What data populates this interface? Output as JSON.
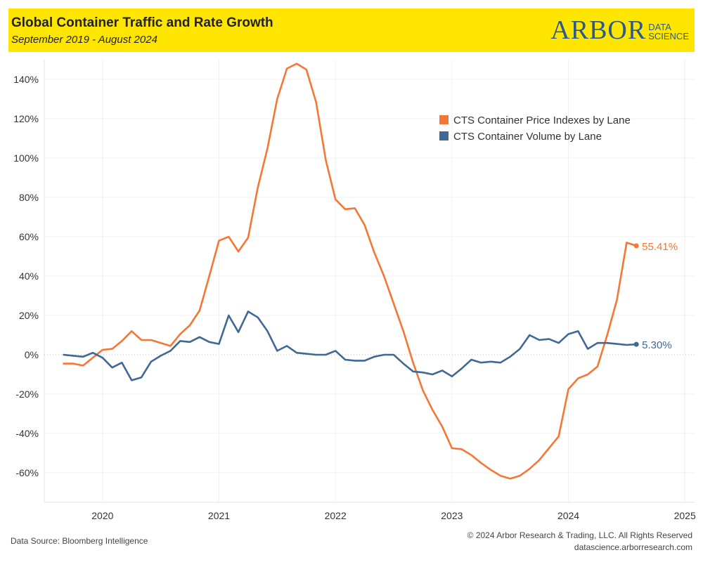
{
  "header": {
    "title": "Global Container Traffic and Rate Growth",
    "subtitle": "September 2019 - August 2024",
    "logo_main": "ARBOR",
    "logo_sub_1": "DATA",
    "logo_sub_2": "SCIENCE"
  },
  "footer": {
    "source": "Data Source: Bloomberg Intelligence",
    "copyright": "© 2024 Arbor Research & Trading, LLC. All Rights Reserved",
    "website": "datascience.arborresearch.com"
  },
  "colors": {
    "header_bg": "#ffe600",
    "price_series": "#f47735",
    "volume_series": "#3f6896"
  },
  "chart_data": {
    "type": "line",
    "x_unit": "month",
    "xlim": [
      "2019-07",
      "2025-02"
    ],
    "ylim": [
      -75,
      150
    ],
    "y_ticks": [
      -60,
      -40,
      -20,
      0,
      20,
      40,
      60,
      80,
      100,
      120,
      140
    ],
    "y_tick_labels": [
      "-60%",
      "-40%",
      "-20%",
      "0%",
      "20%",
      "40%",
      "60%",
      "80%",
      "100%",
      "120%",
      "140%"
    ],
    "x_ticks": [
      "2020-01",
      "2021-01",
      "2022-01",
      "2023-01",
      "2024-01",
      "2025-01"
    ],
    "x_tick_labels": [
      "2020",
      "2021",
      "2022",
      "2023",
      "2024",
      "2025"
    ],
    "gridlines": true,
    "zero_line": "dotted",
    "legend_position": "top-right",
    "x": [
      "2019-09",
      "2019-10",
      "2019-11",
      "2019-12",
      "2020-01",
      "2020-02",
      "2020-03",
      "2020-04",
      "2020-05",
      "2020-06",
      "2020-07",
      "2020-08",
      "2020-09",
      "2020-10",
      "2020-11",
      "2020-12",
      "2021-01",
      "2021-02",
      "2021-03",
      "2021-04",
      "2021-05",
      "2021-06",
      "2021-07",
      "2021-08",
      "2021-09",
      "2021-10",
      "2021-11",
      "2021-12",
      "2022-01",
      "2022-02",
      "2022-03",
      "2022-04",
      "2022-05",
      "2022-06",
      "2022-07",
      "2022-08",
      "2022-09",
      "2022-10",
      "2022-11",
      "2022-12",
      "2023-01",
      "2023-02",
      "2023-03",
      "2023-04",
      "2023-05",
      "2023-06",
      "2023-07",
      "2023-08",
      "2023-09",
      "2023-10",
      "2023-11",
      "2023-12",
      "2024-01",
      "2024-02",
      "2024-03",
      "2024-04",
      "2024-05",
      "2024-06",
      "2024-07",
      "2024-08"
    ],
    "series": [
      {
        "name": "CTS Container Price Indexes by Lane",
        "color": "#f47735",
        "end_label": "55.41%",
        "values": [
          -4.5,
          -4.5,
          -5.5,
          -1.5,
          2.5,
          3,
          7,
          12,
          7.5,
          7.5,
          6,
          4.5,
          10.5,
          15,
          22.5,
          40,
          58,
          60,
          52.5,
          59.5,
          85,
          105,
          130,
          145.5,
          148,
          145,
          128.5,
          99,
          79,
          74,
          74.5,
          66,
          52,
          40,
          26,
          12,
          -4,
          -18,
          -28,
          -36.5,
          -47.5,
          -48,
          -51,
          -55,
          -58.5,
          -61.5,
          -63,
          -61.5,
          -58,
          -53.5,
          -47.5,
          -41.5,
          -17.5,
          -12,
          -10,
          -6,
          10,
          28,
          57,
          55.41
        ]
      },
      {
        "name": "CTS Container Volume by Lane",
        "color": "#3f6896",
        "end_label": "5.30%",
        "values": [
          0,
          -0.5,
          -1,
          1,
          -1.5,
          -6.5,
          -4,
          -13,
          -11.5,
          -3.5,
          -0.5,
          2,
          7,
          6.5,
          9,
          6.5,
          5.5,
          20,
          11.5,
          22,
          19,
          12,
          2,
          4.5,
          1,
          0.5,
          0,
          0,
          2,
          -2.5,
          -3,
          -3,
          -1,
          0,
          0,
          -4.5,
          -8.5,
          -9,
          -10,
          -8,
          -11,
          -7,
          -2.5,
          -4,
          -3.5,
          -4,
          -1,
          3,
          10,
          7.5,
          8,
          6,
          10.5,
          12,
          3,
          6,
          6,
          5.5,
          5,
          5.3
        ]
      }
    ]
  }
}
